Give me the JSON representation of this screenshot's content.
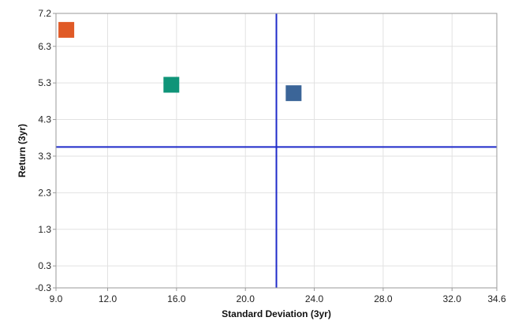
{
  "chart_data": {
    "type": "scatter",
    "xlabel": "Standard Deviation (3yr)",
    "ylabel": "Return (3yr)",
    "xlim": [
      9.0,
      34.6
    ],
    "ylim": [
      -0.3,
      7.2
    ],
    "x_ticks": [
      9.0,
      12.0,
      16.0,
      20.0,
      24.0,
      28.0,
      32.0,
      34.6
    ],
    "x_tick_labels": [
      "9.0",
      "12.0",
      "16.0",
      "20.0",
      "24.0",
      "28.0",
      "32.0",
      "34.6"
    ],
    "y_ticks": [
      -0.3,
      0.3,
      1.3,
      2.3,
      3.3,
      4.3,
      5.3,
      6.3,
      7.2
    ],
    "y_tick_labels": [
      "-0.3",
      "0.3",
      "1.3",
      "2.3",
      "3.3",
      "4.3",
      "5.3",
      "6.3",
      "7.2"
    ],
    "grid": true,
    "marker": "square",
    "points": [
      {
        "x": 9.6,
        "y": 6.75,
        "color": "#e05a26"
      },
      {
        "x": 15.7,
        "y": 5.25,
        "color": "#0f9478"
      },
      {
        "x": 22.8,
        "y": 5.02,
        "color": "#3b6598"
      }
    ],
    "reference_lines": {
      "vertical_x": 21.8,
      "horizontal_y": 3.55,
      "color": "#1f2bc9"
    }
  }
}
